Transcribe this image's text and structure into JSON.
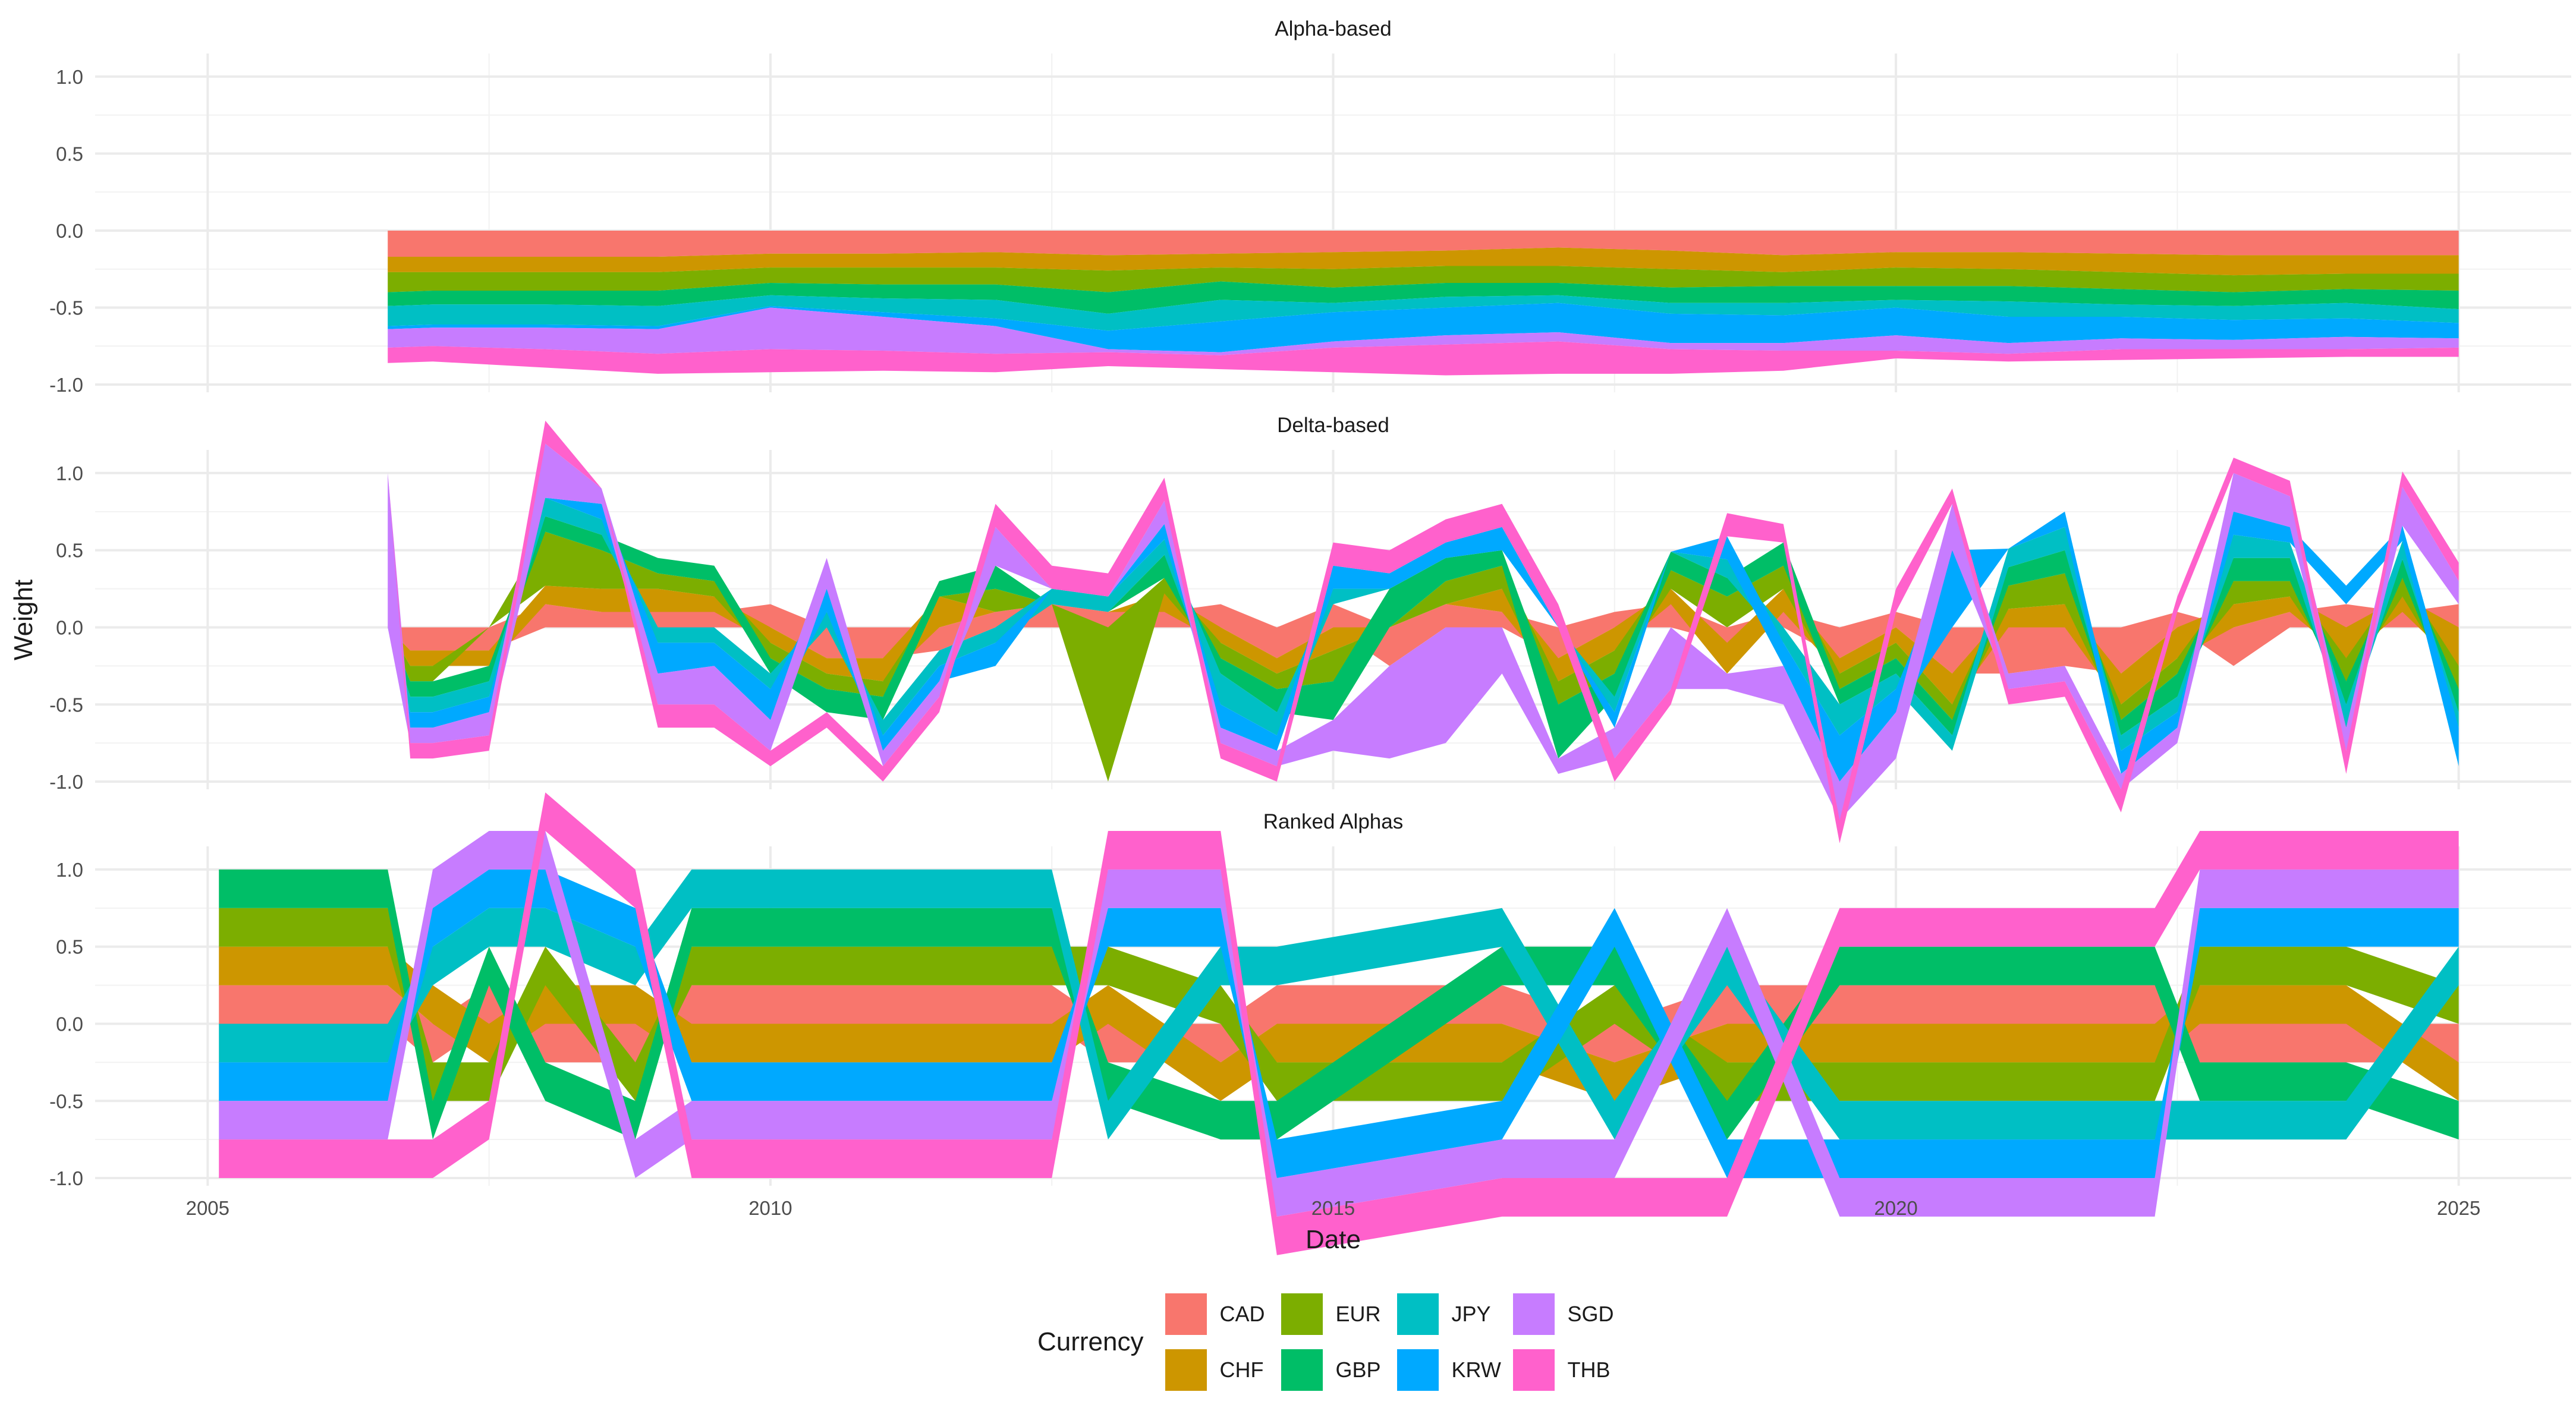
{
  "chart_data": {
    "type": "area",
    "xlabel": "Date",
    "ylabel": "Weight",
    "xlim": [
      2004.0,
      2026.0
    ],
    "x_ticks": [
      2005,
      2010,
      2015,
      2020,
      2025
    ],
    "x_tick_labels": [
      "2005",
      "2010",
      "2015",
      "2020",
      "2025"
    ],
    "y_ticks": [
      -1.0,
      -0.5,
      0.0,
      0.5,
      1.0
    ],
    "y_tick_labels": [
      "-1.0",
      "-0.5",
      "0.0",
      "0.5",
      "1.0"
    ],
    "grid": true,
    "legend_title": "Currency",
    "legend_position": "bottom",
    "series_order": [
      "CAD",
      "CHF",
      "EUR",
      "GBP",
      "JPY",
      "KRW",
      "SGD",
      "THB"
    ],
    "colors": {
      "CAD": "#F8766D",
      "CHF": "#CD9600",
      "EUR": "#7CAE00",
      "GBP": "#00BE67",
      "JPY": "#00BFC4",
      "KRW": "#00A9FF",
      "SGD": "#C77CFF",
      "THB": "#FF61CC"
    },
    "panels": [
      {
        "title": "Alpha-based",
        "ylim": [
          -1.05,
          1.15
        ],
        "x": [
          2006.6,
          2007.0,
          2008.0,
          2009.0,
          2010.0,
          2011.0,
          2012.0,
          2013.0,
          2014.0,
          2015.0,
          2016.0,
          2017.0,
          2018.0,
          2019.0,
          2020.0,
          2021.0,
          2022.0,
          2023.0,
          2024.0,
          2025.0
        ],
        "series": [
          {
            "name": "CAD",
            "values": [
              -0.17,
              -0.17,
              -0.17,
              -0.17,
              -0.15,
              -0.15,
              -0.14,
              -0.16,
              -0.15,
              -0.14,
              -0.13,
              -0.11,
              -0.13,
              -0.16,
              -0.14,
              -0.14,
              -0.15,
              -0.16,
              -0.16,
              -0.16
            ]
          },
          {
            "name": "CHF",
            "values": [
              -0.1,
              -0.1,
              -0.1,
              -0.1,
              -0.09,
              -0.09,
              -0.1,
              -0.1,
              -0.09,
              -0.11,
              -0.1,
              -0.12,
              -0.12,
              -0.11,
              -0.1,
              -0.11,
              -0.12,
              -0.13,
              -0.12,
              -0.12
            ]
          },
          {
            "name": "EUR",
            "values": [
              -0.13,
              -0.12,
              -0.12,
              -0.12,
              -0.1,
              -0.11,
              -0.11,
              -0.14,
              -0.09,
              -0.12,
              -0.11,
              -0.11,
              -0.12,
              -0.09,
              -0.12,
              -0.11,
              -0.11,
              -0.11,
              -0.1,
              -0.11
            ]
          },
          {
            "name": "GBP",
            "values": [
              -0.09,
              -0.09,
              -0.09,
              -0.1,
              -0.08,
              -0.09,
              -0.1,
              -0.14,
              -0.12,
              -0.1,
              -0.09,
              -0.08,
              -0.1,
              -0.11,
              -0.09,
              -0.1,
              -0.1,
              -0.09,
              -0.09,
              -0.12
            ]
          },
          {
            "name": "JPY",
            "values": [
              -0.13,
              -0.13,
              -0.13,
              -0.13,
              -0.07,
              -0.09,
              -0.12,
              -0.11,
              -0.14,
              -0.06,
              -0.07,
              -0.05,
              -0.07,
              -0.08,
              -0.05,
              -0.1,
              -0.08,
              -0.09,
              -0.1,
              -0.09
            ]
          },
          {
            "name": "KRW",
            "values": [
              -0.02,
              -0.02,
              -0.02,
              -0.02,
              -0.01,
              -0.03,
              -0.05,
              -0.12,
              -0.2,
              -0.19,
              -0.18,
              -0.19,
              -0.19,
              -0.18,
              -0.18,
              -0.17,
              -0.14,
              -0.13,
              -0.12,
              -0.1
            ]
          },
          {
            "name": "SGD",
            "values": [
              -0.12,
              -0.12,
              -0.14,
              -0.16,
              -0.27,
              -0.22,
              -0.18,
              -0.02,
              -0.02,
              -0.04,
              -0.06,
              -0.06,
              -0.04,
              -0.05,
              -0.1,
              -0.07,
              -0.07,
              -0.06,
              -0.08,
              -0.06
            ]
          },
          {
            "name": "THB",
            "values": [
              -0.1,
              -0.1,
              -0.12,
              -0.13,
              -0.15,
              -0.13,
              -0.12,
              -0.09,
              -0.09,
              -0.16,
              -0.2,
              -0.21,
              -0.16,
              -0.13,
              -0.05,
              -0.05,
              -0.07,
              -0.06,
              -0.05,
              -0.06
            ]
          }
        ]
      },
      {
        "title": "Delta-based",
        "ylim": [
          -1.05,
          1.15
        ],
        "x": [
          2006.6,
          2006.8,
          2007.0,
          2007.5,
          2008.0,
          2008.5,
          2009.0,
          2009.5,
          2010.0,
          2010.5,
          2011.0,
          2011.5,
          2012.0,
          2012.5,
          2013.0,
          2013.5,
          2014.0,
          2014.5,
          2015.0,
          2015.5,
          2016.0,
          2016.5,
          2017.0,
          2017.5,
          2018.0,
          2018.5,
          2019.0,
          2019.5,
          2020.0,
          2020.5,
          2021.0,
          2021.5,
          2022.0,
          2022.5,
          2023.0,
          2023.5,
          2024.0,
          2024.5,
          2025.0
        ],
        "series": [
          {
            "name": "CAD",
            "values": [
              0.0,
              -0.15,
              -0.15,
              -0.15,
              0.15,
              0.1,
              0.1,
              0.1,
              0.15,
              -0.2,
              -0.2,
              -0.15,
              0.1,
              0.15,
              0.1,
              0.1,
              0.15,
              -0.2,
              0.15,
              -0.25,
              0.15,
              0.1,
              -0.2,
              0.1,
              0.15,
              -0.1,
              0.1,
              -0.2,
              0.1,
              -0.3,
              -0.3,
              -0.25,
              -0.3,
              0.1,
              -0.25,
              0.1,
              0.15,
              0.1,
              0.15
            ]
          },
          {
            "name": "CHF",
            "values": [
              0.0,
              -0.1,
              -0.1,
              -0.1,
              0.12,
              0.15,
              0.15,
              0.1,
              -0.1,
              -0.1,
              -0.15,
              0.2,
              0.0,
              0.0,
              0.0,
              0.12,
              -0.1,
              -0.1,
              -0.15,
              0.0,
              0.0,
              0.15,
              -0.15,
              -0.15,
              0.1,
              -0.2,
              0.15,
              -0.1,
              -0.1,
              -0.2,
              0.12,
              0.15,
              -0.2,
              -0.2,
              0.15,
              0.1,
              -0.2,
              0.1,
              -0.25
            ]
          },
          {
            "name": "EUR",
            "values": [
              0.0,
              -0.1,
              -0.1,
              0.0,
              0.35,
              0.25,
              0.1,
              0.1,
              -0.1,
              -0.1,
              -0.1,
              0.0,
              0.15,
              0.0,
              -1.0,
              0.1,
              -0.1,
              -0.1,
              -0.2,
              0.0,
              0.15,
              0.15,
              -0.15,
              -0.15,
              0.12,
              0.2,
              0.15,
              -0.1,
              -0.1,
              -0.1,
              0.15,
              0.2,
              -0.1,
              -0.1,
              0.15,
              0.1,
              -0.15,
              0.12,
              -0.15
            ]
          },
          {
            "name": "GBP",
            "values": [
              0.0,
              -0.1,
              -0.1,
              -0.1,
              0.1,
              0.1,
              0.1,
              0.1,
              -0.1,
              -0.15,
              -0.15,
              0.1,
              0.15,
              0.0,
              0.0,
              0.15,
              -0.1,
              -0.15,
              -0.25,
              0.25,
              0.15,
              0.1,
              -0.35,
              -0.15,
              0.12,
              0.12,
              0.15,
              -0.1,
              -0.1,
              -0.1,
              0.12,
              0.15,
              -0.1,
              -0.15,
              0.15,
              0.15,
              -0.15,
              0.12,
              -0.15
            ]
          },
          {
            "name": "JPY",
            "values": [
              0.0,
              -0.1,
              -0.1,
              -0.1,
              0.12,
              0.1,
              -0.1,
              -0.1,
              -0.1,
              0.1,
              -0.1,
              -0.1,
              -0.1,
              0.1,
              0.1,
              0.1,
              -0.2,
              -0.15,
              0.1,
              0.0,
              0.0,
              0.0,
              0.0,
              -0.1,
              0.0,
              0.12,
              -0.1,
              -0.2,
              -0.1,
              -0.1,
              0.12,
              0.15,
              -0.1,
              -0.1,
              0.15,
              0.1,
              -0.15,
              0.12,
              -0.1
            ]
          },
          {
            "name": "KRW",
            "values": [
              0.0,
              -0.1,
              -0.1,
              -0.1,
              0.0,
              0.1,
              -0.2,
              -0.15,
              -0.2,
              0.15,
              -0.1,
              -0.1,
              -0.15,
              0.0,
              0.0,
              0.1,
              -0.15,
              -0.1,
              0.15,
              0.1,
              0.1,
              0.15,
              0.0,
              -0.1,
              0.0,
              0.15,
              -0.15,
              -0.3,
              -0.15,
              0.5,
              0.0,
              0.1,
              -0.15,
              -0.1,
              0.15,
              0.1,
              0.12,
              0.1,
              -0.25
            ]
          },
          {
            "name": "SGD",
            "values": [
              1.0,
              -0.1,
              -0.1,
              -0.15,
              0.35,
              0.1,
              -0.2,
              -0.25,
              -0.2,
              0.2,
              -0.1,
              -0.1,
              0.25,
              0.0,
              0.0,
              0.15,
              -0.1,
              -0.1,
              -0.2,
              -0.6,
              -0.75,
              -0.3,
              -0.1,
              -0.2,
              -0.4,
              -0.1,
              -0.25,
              -0.25,
              -0.3,
              0.3,
              -0.1,
              -0.1,
              -0.1,
              -0.1,
              0.25,
              0.2,
              -0.15,
              0.25,
              0.15
            ]
          },
          {
            "name": "THB",
            "values": [
              0.0,
              -0.1,
              -0.1,
              -0.1,
              0.15,
              0.0,
              -0.15,
              -0.15,
              -0.1,
              -0.1,
              -0.1,
              -0.1,
              0.15,
              0.15,
              0.15,
              0.15,
              -0.1,
              -0.1,
              0.15,
              0.15,
              0.15,
              0.15,
              0.15,
              -0.15,
              -0.1,
              0.15,
              0.12,
              -0.15,
              0.15,
              0.1,
              -0.1,
              -0.1,
              -0.15,
              0.1,
              0.1,
              0.1,
              -0.15,
              0.1,
              0.12
            ]
          }
        ]
      },
      {
        "title": "Ranked Alphas",
        "ylim": [
          -1.05,
          1.15
        ],
        "x": [
          2005.1,
          2006.6,
          2007.0,
          2007.5,
          2008.0,
          2008.8,
          2009.3,
          2012.5,
          2013.0,
          2014.0,
          2014.5,
          2016.5,
          2017.5,
          2018.5,
          2019.5,
          2020.5,
          2022.3,
          2022.7,
          2024.0,
          2025.0
        ],
        "series": [
          {
            "name": "CAD",
            "values": [
              0.25,
              0.25,
              -0.25,
              0.25,
              -0.25,
              -0.25,
              0.25,
              0.25,
              -0.25,
              -0.25,
              0.25,
              0.25,
              -0.25,
              0.25,
              0.25,
              0.25,
              0.25,
              -0.25,
              -0.25,
              -0.25
            ]
          },
          {
            "name": "CHF",
            "values": [
              0.25,
              0.25,
              0.25,
              -0.25,
              0.25,
              0.25,
              -0.25,
              -0.25,
              0.25,
              -0.25,
              -0.25,
              -0.25,
              -0.25,
              -0.25,
              -0.25,
              -0.25,
              -0.25,
              0.25,
              0.25,
              -0.25
            ]
          },
          {
            "name": "EUR",
            "values": [
              0.25,
              0.25,
              -0.25,
              -0.25,
              0.25,
              -0.25,
              0.25,
              0.25,
              0.25,
              0.25,
              -0.25,
              -0.25,
              0.25,
              -0.25,
              -0.25,
              -0.25,
              -0.25,
              0.25,
              0.25,
              0.25
            ]
          },
          {
            "name": "GBP",
            "values": [
              0.25,
              0.25,
              -0.25,
              0.25,
              -0.25,
              -0.25,
              0.25,
              0.25,
              -0.25,
              -0.25,
              -0.25,
              0.25,
              0.25,
              -0.25,
              0.25,
              0.25,
              0.25,
              -0.25,
              -0.25,
              -0.25
            ]
          },
          {
            "name": "JPY",
            "values": [
              -0.25,
              -0.25,
              0.25,
              0.25,
              0.25,
              0.25,
              0.25,
              0.25,
              -0.25,
              0.25,
              0.25,
              0.25,
              -0.25,
              0.25,
              -0.25,
              -0.25,
              -0.25,
              -0.25,
              -0.25,
              0.25
            ]
          },
          {
            "name": "KRW",
            "values": [
              -0.25,
              -0.25,
              0.25,
              0.25,
              0.25,
              0.25,
              -0.25,
              -0.25,
              0.25,
              0.25,
              -0.25,
              -0.25,
              0.25,
              -0.25,
              -0.25,
              -0.25,
              -0.25,
              0.25,
              0.25,
              0.25
            ]
          },
          {
            "name": "SGD",
            "values": [
              -0.25,
              -0.25,
              0.25,
              0.25,
              0.25,
              -0.25,
              -0.25,
              -0.25,
              0.25,
              0.25,
              -0.25,
              -0.25,
              -0.25,
              0.25,
              -0.25,
              -0.25,
              -0.25,
              0.25,
              0.25,
              0.25
            ]
          },
          {
            "name": "THB",
            "values": [
              -0.25,
              -0.25,
              -0.25,
              -0.25,
              0.25,
              0.25,
              -0.25,
              -0.25,
              0.25,
              0.25,
              -0.25,
              -0.25,
              -0.25,
              -0.25,
              0.25,
              0.25,
              0.25,
              0.25,
              0.25,
              0.25
            ]
          }
        ]
      }
    ]
  }
}
